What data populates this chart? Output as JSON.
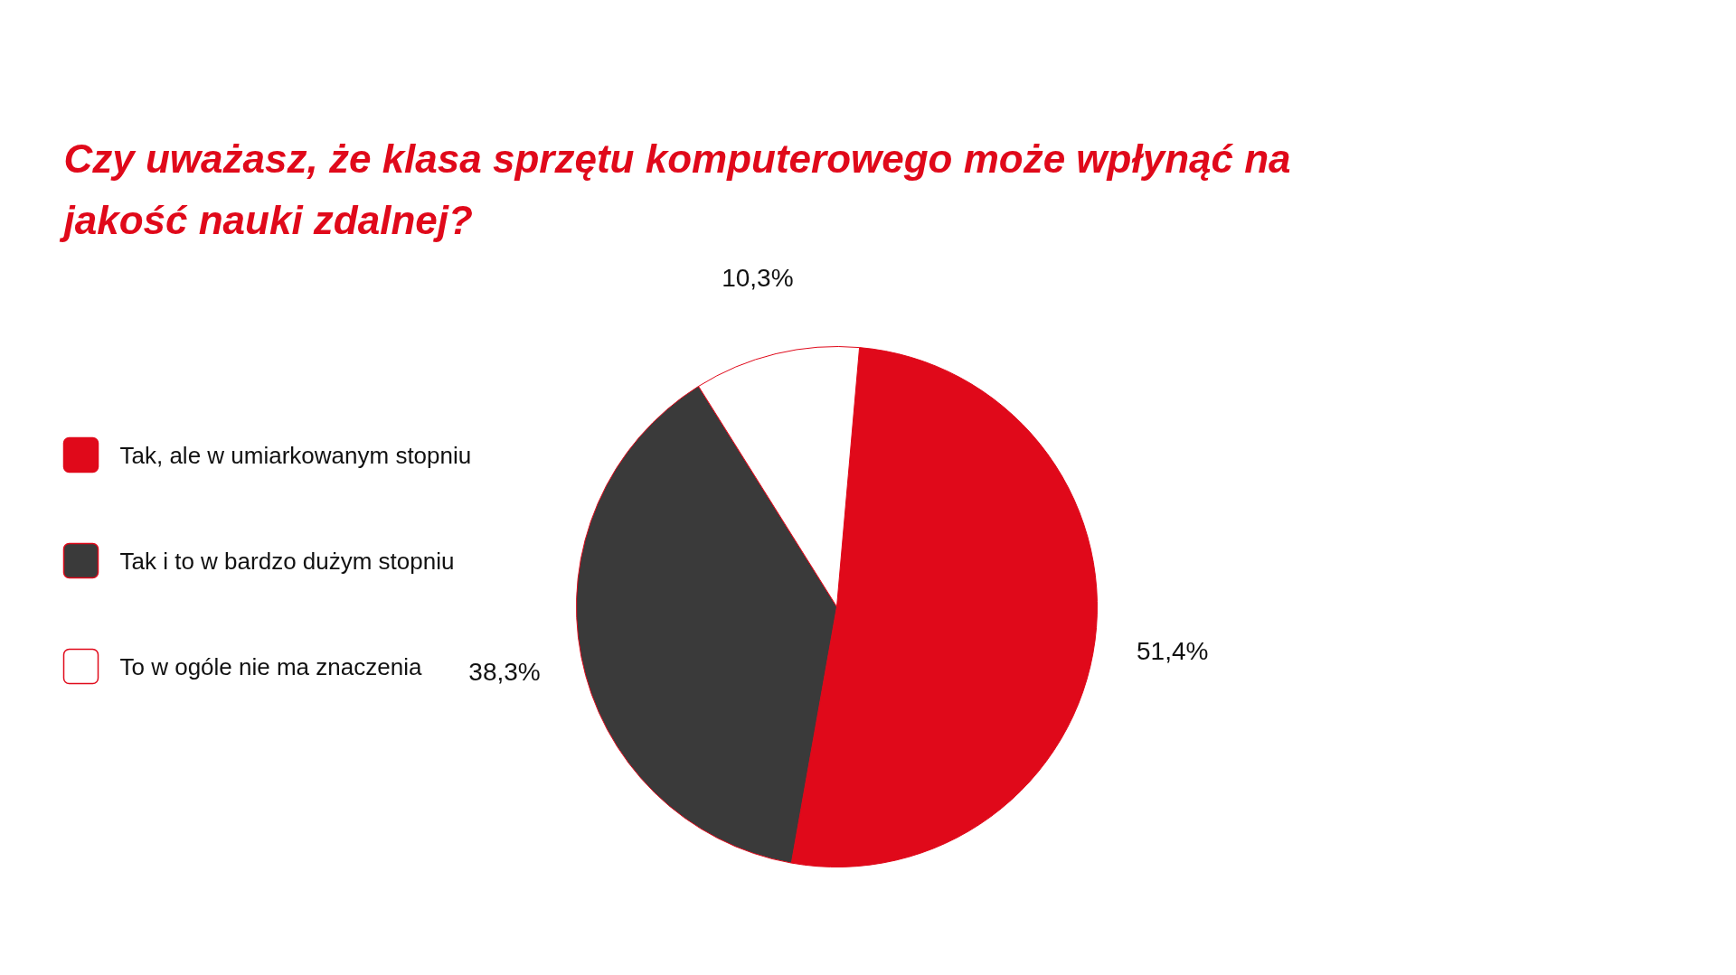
{
  "chart_data": {
    "type": "pie",
    "title": "Czy uważasz, że klasa sprzętu komputerowego może wpłynąć na jakość nauki zdalnej?",
    "categories": [
      "Tak, ale w umiarkowanym stopniu",
      "Tak i to w bardzo dużym stopniu",
      "To w ogóle nie ma znaczenia"
    ],
    "values": [
      51.4,
      38.3,
      10.3
    ],
    "colors": [
      "#e0091a",
      "#3a3a3a",
      "#ffffff"
    ],
    "value_labels": [
      "51,4%",
      "38,3%",
      "10,3%"
    ],
    "legend": "left"
  }
}
